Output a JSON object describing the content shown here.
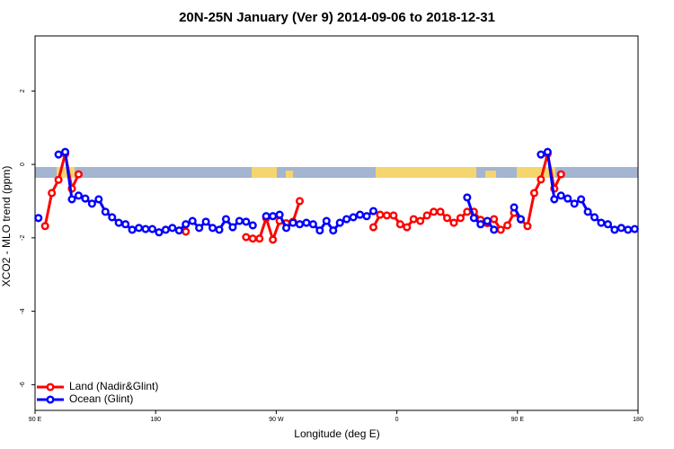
{
  "chart_data": {
    "type": "line",
    "title": "20N-25N January (Ver 9)   2014-09-06 to 2018-12-31",
    "xlabel": "Longitude (deg E)",
    "ylabel": "XCO2 - MLO trend (ppm)",
    "x": [
      92.5,
      97.5,
      102.5,
      107.5,
      112.5,
      117.5,
      122.5,
      127.5,
      132.5,
      137.5,
      142.5,
      147.5,
      152.5,
      157.5,
      162.5,
      167.5,
      172.5,
      177.5,
      182.5,
      187.5,
      192.5,
      197.5,
      202.5,
      207.5,
      212.5,
      217.5,
      222.5,
      227.5,
      232.5,
      237.5,
      242.5,
      247.5,
      252.5,
      257.5,
      262.5,
      267.5,
      272.5,
      277.5,
      282.5,
      287.5,
      292.5,
      297.5,
      302.5,
      307.5,
      312.5,
      317.5,
      322.5,
      327.5,
      332.5,
      337.5,
      342.5,
      347.5,
      352.5,
      357.5,
      362.5,
      367.5,
      372.5,
      377.5,
      382.5,
      387.5,
      392.5,
      397.5,
      402.5,
      407.5,
      412.5,
      417.5,
      422.5,
      427.5,
      432.5,
      437.5,
      442.5,
      447.5,
      452.5,
      457.5,
      462.5,
      467.5,
      472.5,
      477.5,
      482.5,
      487.5,
      492.5,
      497.5,
      502.5,
      507.5,
      512.5,
      517.5,
      522.5,
      527.5,
      532.5,
      537.5
    ],
    "series": [
      {
        "name": "Land (Nadir&Glint)",
        "color": "#ff0000",
        "values": [
          null,
          -1.68,
          -0.78,
          -0.42,
          0.29,
          -0.66,
          -0.27,
          null,
          null,
          null,
          null,
          null,
          null,
          null,
          null,
          null,
          null,
          null,
          null,
          null,
          null,
          null,
          -1.83,
          null,
          null,
          null,
          null,
          null,
          null,
          null,
          null,
          -1.98,
          -2.02,
          -2.02,
          -1.46,
          -2.05,
          -1.54,
          -1.6,
          -1.56,
          -1.0,
          null,
          null,
          null,
          null,
          null,
          null,
          null,
          null,
          null,
          null,
          -1.71,
          -1.37,
          -1.39,
          -1.39,
          -1.63,
          -1.71,
          -1.49,
          -1.54,
          -1.39,
          -1.29,
          -1.29,
          -1.46,
          -1.59,
          -1.46,
          -1.29,
          -1.29,
          -1.51,
          -1.6,
          -1.49,
          -1.78,
          -1.66,
          -1.32,
          -1.5,
          -1.68,
          -0.78,
          -0.41,
          0.29,
          -0.66,
          -0.27,
          null,
          null,
          null,
          null,
          null,
          null,
          null,
          null,
          null,
          null,
          null
        ]
      },
      {
        "name": "Ocean (Glint)",
        "color": "#0000ff",
        "values": [
          -1.46,
          null,
          null,
          0.27,
          0.34,
          -0.95,
          -0.85,
          -0.93,
          -1.07,
          -0.95,
          -1.29,
          -1.44,
          -1.59,
          -1.63,
          -1.78,
          -1.73,
          -1.76,
          -1.76,
          -1.85,
          -1.78,
          -1.73,
          -1.8,
          -1.63,
          -1.54,
          -1.73,
          -1.56,
          -1.73,
          -1.78,
          -1.49,
          -1.71,
          -1.54,
          -1.56,
          -1.66,
          null,
          -1.41,
          -1.41,
          -1.37,
          -1.73,
          -1.59,
          -1.63,
          -1.59,
          -1.63,
          -1.8,
          -1.54,
          -1.8,
          -1.59,
          -1.49,
          -1.44,
          -1.37,
          -1.41,
          -1.27,
          null,
          null,
          null,
          null,
          null,
          null,
          null,
          null,
          null,
          null,
          null,
          null,
          null,
          -0.9,
          -1.46,
          -1.63,
          -1.54,
          -1.78,
          null,
          null,
          -1.17,
          -1.49,
          null,
          null,
          0.27,
          0.34,
          -0.95,
          -0.85,
          -0.93,
          -1.07,
          -0.95,
          -1.29,
          -1.44,
          -1.59,
          -1.63,
          -1.78,
          -1.73,
          -1.78,
          -1.76
        ]
      }
    ],
    "xlim": [
      90,
      540
    ],
    "xticks": [
      {
        "value": 90,
        "label": "90 E"
      },
      180,
      {
        "value": 270,
        "label": "90 W"
      },
      {
        "value": 360,
        "label": "0"
      },
      {
        "value": 450,
        "label": "90 E"
      },
      {
        "value": 540,
        "label": "180"
      }
    ],
    "ylim": [
      -6.7,
      3.5
    ],
    "yticks": [
      -6,
      -4,
      -2,
      0,
      2
    ],
    "legend": "bottomleft"
  }
}
